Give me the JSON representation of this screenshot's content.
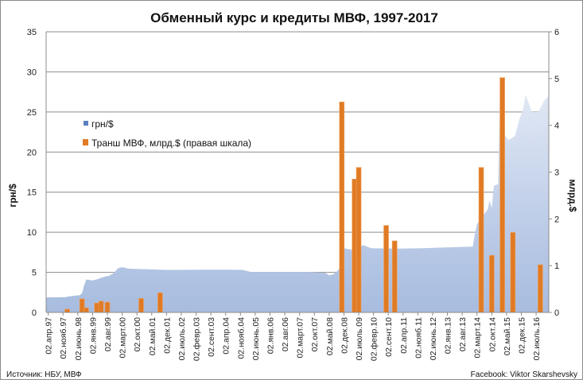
{
  "chart_data": {
    "type": "area+bar",
    "title": "Обменный курс и кредиты МВФ, 1997-2017",
    "ylabel": "грн/$",
    "y2label": "млрд.$",
    "ylim": [
      0,
      35
    ],
    "yticks": [
      0,
      5,
      10,
      15,
      20,
      25,
      30,
      35
    ],
    "y2lim": [
      0,
      6
    ],
    "y2ticks": [
      0,
      1,
      2,
      3,
      4,
      5,
      6
    ],
    "xrange": [
      "1997-03",
      "2017-01"
    ],
    "xticks": [
      "02.апр.97",
      "02.нояб.97",
      "02.июнь.98",
      "02.янв.99",
      "02.авг.99",
      "02.март.00",
      "02.окт.00",
      "02.май.01",
      "02.дек.01",
      "02.июль.02",
      "02.февр.03",
      "02.сент.03",
      "02.апр.04",
      "02.нояб.04",
      "02.июнь.05",
      "02.янв.06",
      "02.авг.06",
      "02.март.07",
      "02.окт.07",
      "02.май.08",
      "02.дек.08",
      "02.июль.09",
      "02.февр.10",
      "02.сент.10",
      "02.апр.11",
      "02.нояб.11",
      "02.июнь.12",
      "02.янв.13",
      "02.авг.13",
      "02.март.14",
      "02.окт.14",
      "02.май.15",
      "02.дек.15",
      "02.июль.16"
    ],
    "xtick_start": "1997-04",
    "xtick_step_months": 7,
    "grid": true,
    "legend_position": "left",
    "series": [
      {
        "name": "грн/$",
        "type": "area",
        "axis": "left",
        "color": "#5b7fbf",
        "points": [
          [
            "1997-03",
            1.87
          ],
          [
            "1997-12",
            1.9
          ],
          [
            "1998-02",
            2.0
          ],
          [
            "1998-07",
            2.15
          ],
          [
            "1998-08",
            2.4
          ],
          [
            "1998-09",
            3.4
          ],
          [
            "1998-10",
            4.1
          ],
          [
            "1999-01",
            4.0
          ],
          [
            "1999-04",
            4.2
          ],
          [
            "1999-06",
            4.4
          ],
          [
            "1999-09",
            4.6
          ],
          [
            "1999-11",
            4.9
          ],
          [
            "2000-01",
            5.5
          ],
          [
            "2000-03",
            5.65
          ],
          [
            "2000-06",
            5.45
          ],
          [
            "2001-06",
            5.35
          ],
          [
            "2001-12",
            5.3
          ],
          [
            "2002-06",
            5.3
          ],
          [
            "2003-06",
            5.33
          ],
          [
            "2004-06",
            5.32
          ],
          [
            "2004-12",
            5.3
          ],
          [
            "2005-04",
            5.05
          ],
          [
            "2006-06",
            5.05
          ],
          [
            "2007-06",
            5.05
          ],
          [
            "2008-03",
            4.95
          ],
          [
            "2008-05",
            4.65
          ],
          [
            "2008-07",
            4.75
          ],
          [
            "2008-09",
            5.2
          ],
          [
            "2008-10",
            5.6
          ],
          [
            "2008-11",
            9.0
          ],
          [
            "2008-12",
            8.0
          ],
          [
            "2009-06",
            7.7
          ],
          [
            "2009-09",
            8.4
          ],
          [
            "2010-01",
            8.0
          ],
          [
            "2011-01",
            7.95
          ],
          [
            "2012-01",
            8.0
          ],
          [
            "2013-06",
            8.15
          ],
          [
            "2014-01",
            8.2
          ],
          [
            "2014-02",
            9.8
          ],
          [
            "2014-03",
            11.0
          ],
          [
            "2014-05",
            11.8
          ],
          [
            "2014-08",
            12.8
          ],
          [
            "2014-09",
            14.0
          ],
          [
            "2014-10",
            13.0
          ],
          [
            "2014-11",
            15.8
          ],
          [
            "2015-01",
            16.0
          ],
          [
            "2015-02",
            30.0
          ],
          [
            "2015-03",
            22.5
          ],
          [
            "2015-06",
            21.5
          ],
          [
            "2015-09",
            22.0
          ],
          [
            "2015-11",
            24.0
          ],
          [
            "2016-01",
            25.5
          ],
          [
            "2016-02",
            27.2
          ],
          [
            "2016-05",
            25.0
          ],
          [
            "2016-08",
            25.0
          ],
          [
            "2016-11",
            26.5
          ],
          [
            "2017-01",
            27.0
          ]
        ]
      },
      {
        "name": "Транш МВФ, млрд.$ (правая шкала)",
        "type": "bar",
        "axis": "right",
        "color": "#e07b24",
        "points": [
          [
            "1998-01",
            0.07
          ],
          [
            "1998-08",
            0.29
          ],
          [
            "1998-10",
            0.1
          ],
          [
            "1999-03",
            0.2
          ],
          [
            "1999-05",
            0.24
          ],
          [
            "1999-08",
            0.22
          ],
          [
            "2000-12",
            0.3
          ],
          [
            "2001-09",
            0.42
          ],
          [
            "2008-11",
            4.5
          ],
          [
            "2009-05",
            2.85
          ],
          [
            "2009-07",
            3.1
          ],
          [
            "2010-08",
            1.86
          ],
          [
            "2010-12",
            1.53
          ],
          [
            "2014-05",
            3.1
          ],
          [
            "2014-10",
            1.22
          ],
          [
            "2015-03",
            5.02
          ],
          [
            "2015-08",
            1.71
          ],
          [
            "2016-09",
            1.02
          ]
        ]
      }
    ],
    "annotations": {
      "source": "Источник: НБУ, МВФ",
      "credit": "Facebook: Viktor Skarshevsky"
    }
  }
}
